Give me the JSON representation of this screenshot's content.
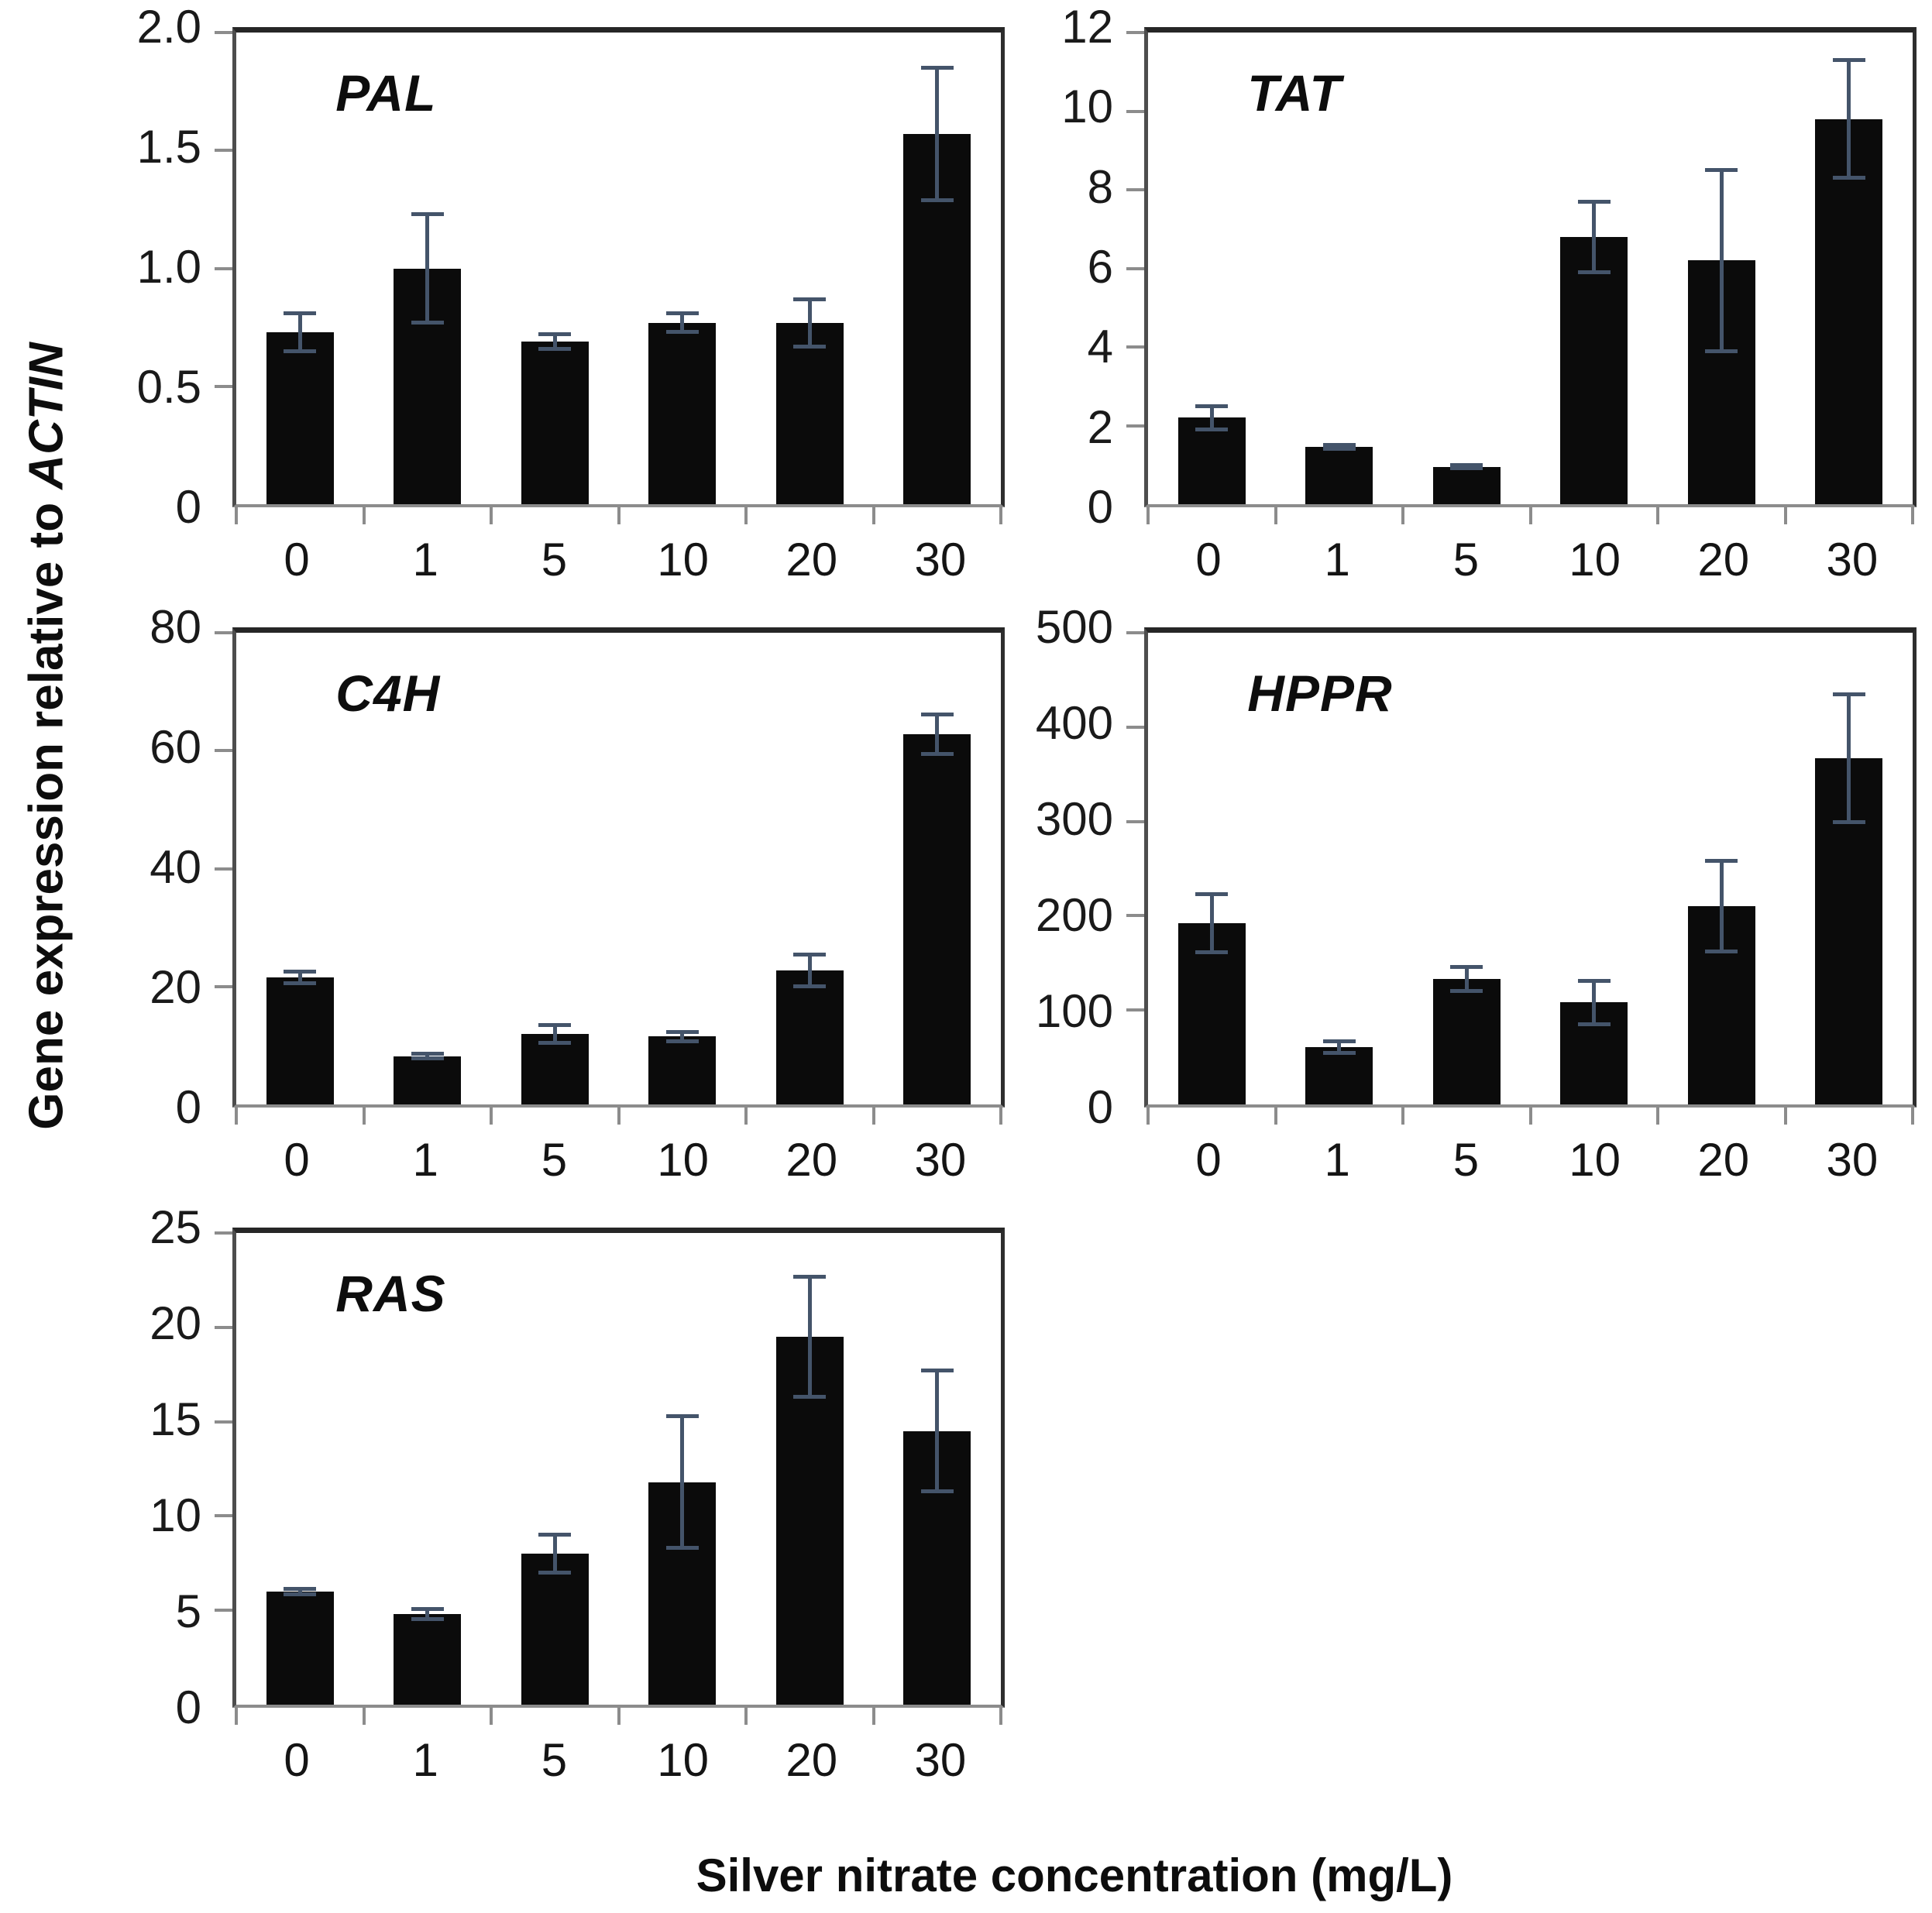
{
  "figure": {
    "y_axis_title_prefix": "Gene expression relative to ",
    "y_axis_title_italic": "ACTIN",
    "x_axis_title": "Silver nitrate concentration (mg/L)"
  },
  "colors": {
    "bar": "#0b0b0b",
    "error_bar": "#44546A"
  },
  "chart_data": [
    {
      "type": "bar",
      "title": "PAL",
      "categories": [
        "0",
        "1",
        "5",
        "10",
        "20",
        "30"
      ],
      "values": [
        0.73,
        1.0,
        0.69,
        0.77,
        0.77,
        1.57
      ],
      "errors": [
        0.08,
        0.23,
        0.03,
        0.04,
        0.1,
        0.28
      ],
      "ylim": [
        0,
        2.0
      ],
      "ytick_labels": [
        "0",
        "0.5",
        "1.0",
        "1.5",
        "2.0"
      ],
      "grid": false,
      "legend": null
    },
    {
      "type": "bar",
      "title": "TAT",
      "categories": [
        "0",
        "1",
        "5",
        "10",
        "20",
        "30"
      ],
      "values": [
        2.2,
        1.45,
        0.95,
        6.8,
        6.2,
        9.8
      ],
      "errors": [
        0.3,
        0.05,
        0.04,
        0.9,
        2.3,
        1.5
      ],
      "ylim": [
        0,
        12
      ],
      "ytick_labels": [
        "0",
        "2",
        "4",
        "6",
        "8",
        "10",
        "12"
      ],
      "grid": false,
      "legend": null
    },
    {
      "type": "bar",
      "title": "C4H",
      "categories": [
        "0",
        "1",
        "5",
        "10",
        "20",
        "30"
      ],
      "values": [
        21.5,
        8.2,
        12.0,
        11.5,
        22.7,
        62.8
      ],
      "errors": [
        1.0,
        0.4,
        1.5,
        0.8,
        2.7,
        3.3
      ],
      "ylim": [
        0,
        80
      ],
      "ytick_labels": [
        "0",
        "20",
        "40",
        "60",
        "80"
      ],
      "grid": false,
      "legend": null
    },
    {
      "type": "bar",
      "title": "HPPR",
      "categories": [
        "0",
        "1",
        "5",
        "10",
        "20",
        "30"
      ],
      "values": [
        192,
        61,
        133,
        108,
        210,
        367
      ],
      "errors": [
        31,
        6,
        13,
        23,
        48,
        68
      ],
      "ylim": [
        0,
        500
      ],
      "ytick_labels": [
        "0",
        "100",
        "200",
        "300",
        "400",
        "500"
      ],
      "grid": false,
      "legend": null
    },
    {
      "type": "bar",
      "title": "RAS",
      "categories": [
        "0",
        "1",
        "5",
        "10",
        "20",
        "30"
      ],
      "values": [
        6.0,
        4.8,
        8.0,
        11.8,
        19.5,
        14.5
      ],
      "errors": [
        0.15,
        0.25,
        1.0,
        3.5,
        3.2,
        3.2
      ],
      "ylim": [
        0,
        25
      ],
      "ytick_labels": [
        "0",
        "5",
        "10",
        "15",
        "20",
        "25"
      ],
      "grid": false,
      "legend": null
    }
  ]
}
